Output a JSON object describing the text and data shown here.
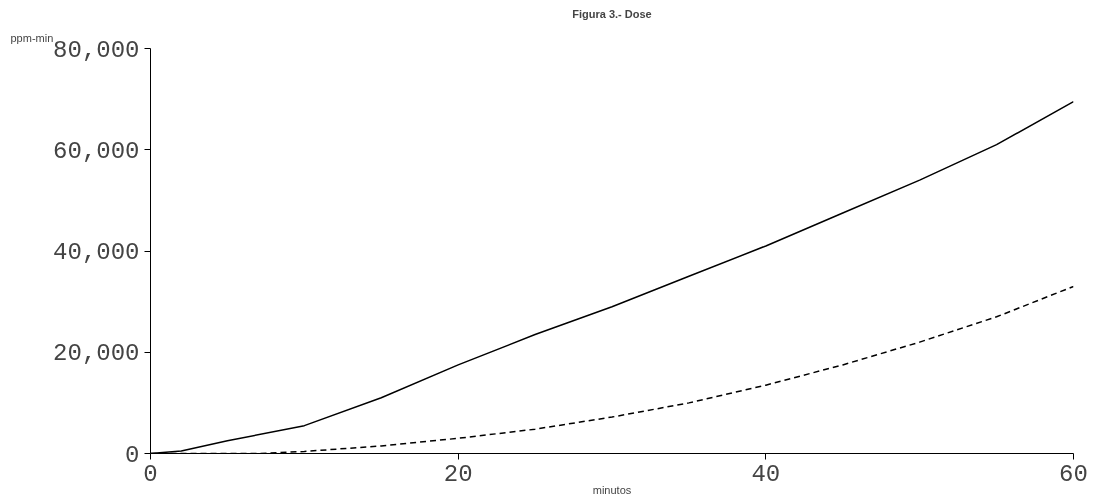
{
  "chart_data": {
    "type": "line",
    "title": "Figura 3.- Dose",
    "xlabel": "minutos",
    "ylabel": "ppm-min",
    "xlim": [
      0,
      60
    ],
    "ylim": [
      0,
      80000
    ],
    "xticks": [
      0,
      20,
      40,
      60
    ],
    "yticks": [
      {
        "value": 0,
        "label": "0"
      },
      {
        "value": 20000,
        "label": "20,000"
      },
      {
        "value": 40000,
        "label": "40,000"
      },
      {
        "value": 60000,
        "label": "60,000"
      },
      {
        "value": 80000,
        "label": "80,000"
      }
    ],
    "grid": false,
    "series": [
      {
        "color": "#000000",
        "line_style": "solid",
        "x": [
          0,
          2,
          5,
          10,
          15,
          20,
          25,
          30,
          35,
          40,
          45,
          50,
          55,
          60
        ],
        "values": [
          0,
          500,
          2500,
          5500,
          11000,
          17500,
          23500,
          29000,
          35000,
          41000,
          47500,
          54000,
          61000,
          69500
        ]
      },
      {
        "color": "#000000",
        "line_style": "dashed",
        "x": [
          0,
          7,
          10,
          15,
          20,
          25,
          30,
          35,
          40,
          45,
          50,
          55,
          60
        ],
        "values": [
          0,
          0,
          400,
          1500,
          3000,
          4800,
          7200,
          10000,
          13500,
          17500,
          22000,
          27000,
          33000
        ]
      }
    ]
  }
}
